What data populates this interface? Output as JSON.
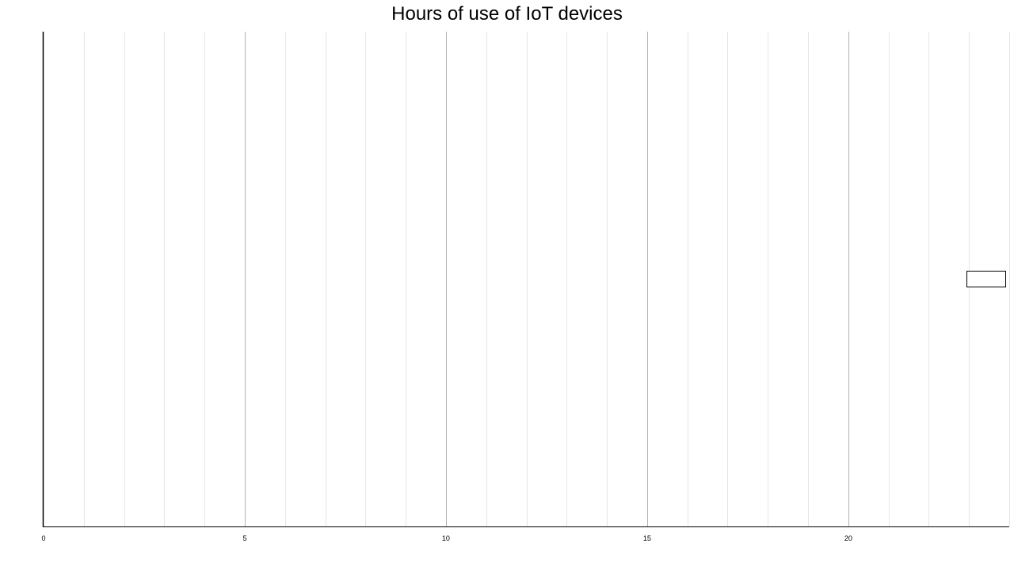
{
  "chart_data": {
    "type": "bar",
    "orientation": "horizontal",
    "title": "Hours of use of IoT devices",
    "xlabel": "",
    "ylabel": "",
    "xlim": [
      0,
      24
    ],
    "major_ticks": [
      0,
      5,
      10,
      15,
      20
    ],
    "minor_tick_step": 1,
    "grid": true,
    "bars": [
      {
        "start": 23,
        "end": 24
      }
    ],
    "colors": {
      "background": "#ffffff",
      "major_grid": "#b3b3b3",
      "minor_grid": "#e6e6e6",
      "axis": "#000000",
      "bar_fill": "#ffffff",
      "bar_stroke": "#000000"
    }
  }
}
